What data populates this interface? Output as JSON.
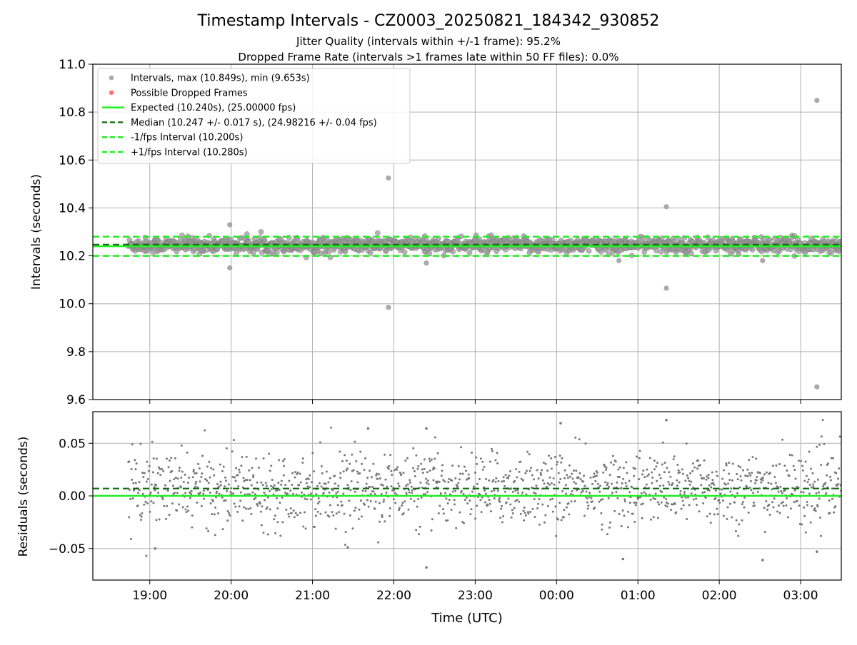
{
  "figure": {
    "title": "Timestamp Intervals - CZ0003_20250821_184342_930852",
    "subtitle_1": "Jitter Quality (intervals within +/-1 frame): 95.2%",
    "subtitle_2": "Dropped Frame Rate (intervals >1 frames late within 50 FF files): 0.0%",
    "xlabel": "Time (UTC)"
  },
  "colors": {
    "points": "#9a9a9a",
    "points_edge": "#6e6e6e",
    "dropped": "#ff6666",
    "expected": "#22ee22",
    "median": "#0b6b0b",
    "residual_points": "#777777",
    "grid": "#b0b0b0"
  },
  "chart_data": [
    {
      "type": "scatter",
      "name": "intervals",
      "ylabel": "Intervals (seconds)",
      "ylim": [
        9.6,
        11.0
      ],
      "y_ticks": [
        "9.6",
        "9.8",
        "10.0",
        "10.2",
        "10.4",
        "10.6",
        "10.8",
        "11.0"
      ],
      "xlim": [
        "18:18",
        "03:30"
      ],
      "x_ticks": [
        "19:00",
        "20:00",
        "21:00",
        "22:00",
        "23:00",
        "00:00",
        "01:00",
        "02:00",
        "03:00"
      ],
      "grid": true,
      "legend_position": "top-left",
      "legend": [
        "Intervals, max (10.849s), min (9.653s)",
        "Possible Dropped Frames",
        "Expected (10.240s), (25.00000 fps)",
        "Median (10.247 +/- 0.017 s), (24.98216 +/- 0.04 fps)",
        "-1/fps Interval (10.200s)",
        "+1/fps Interval (10.280s)"
      ],
      "x_range": [
        "18:44",
        "03:30"
      ],
      "interval_s": 10.24,
      "lines": {
        "expected": 10.24,
        "median": 10.247,
        "minus_one_frame": 10.2,
        "plus_one_frame": 10.28
      },
      "bulk": {
        "center": 10.245,
        "spread": 0.017
      },
      "outliers": [
        {
          "t": "19:59",
          "y": 10.33
        },
        {
          "t": "19:59",
          "y": 10.15
        },
        {
          "t": "21:56",
          "y": 10.525
        },
        {
          "t": "21:56",
          "y": 9.985
        },
        {
          "t": "01:21",
          "y": 10.405
        },
        {
          "t": "01:21",
          "y": 10.065
        },
        {
          "t": "03:12",
          "y": 10.849
        },
        {
          "t": "03:12",
          "y": 9.653
        },
        {
          "t": "22:24",
          "y": 10.17
        },
        {
          "t": "00:46",
          "y": 10.18
        },
        {
          "t": "02:32",
          "y": 10.18
        }
      ]
    },
    {
      "type": "scatter",
      "name": "residuals",
      "ylabel": "Residuals (seconds)",
      "ylim": [
        -0.08,
        0.08
      ],
      "y_ticks": [
        "−0.05",
        "0.00",
        "0.05"
      ],
      "xlim": [
        "18:18",
        "03:30"
      ],
      "x_ticks": [
        "19:00",
        "20:00",
        "21:00",
        "22:00",
        "23:00",
        "00:00",
        "01:00",
        "02:00",
        "03:00"
      ],
      "grid": true,
      "lines": {
        "expected": 0.0,
        "median": 0.007
      },
      "bulk": {
        "center": 0.007,
        "spread": 0.017
      },
      "outliers": [
        {
          "t": "22:24",
          "y": -0.068
        },
        {
          "t": "00:03",
          "y": 0.069
        },
        {
          "t": "01:21",
          "y": 0.072
        },
        {
          "t": "02:32",
          "y": -0.061
        },
        {
          "t": "03:12",
          "y": -0.053
        },
        {
          "t": "19:04",
          "y": -0.05
        },
        {
          "t": "21:26",
          "y": -0.049
        },
        {
          "t": "00:49",
          "y": -0.06
        },
        {
          "t": "21:41",
          "y": 0.064
        },
        {
          "t": "22:24",
          "y": 0.064
        }
      ]
    }
  ]
}
